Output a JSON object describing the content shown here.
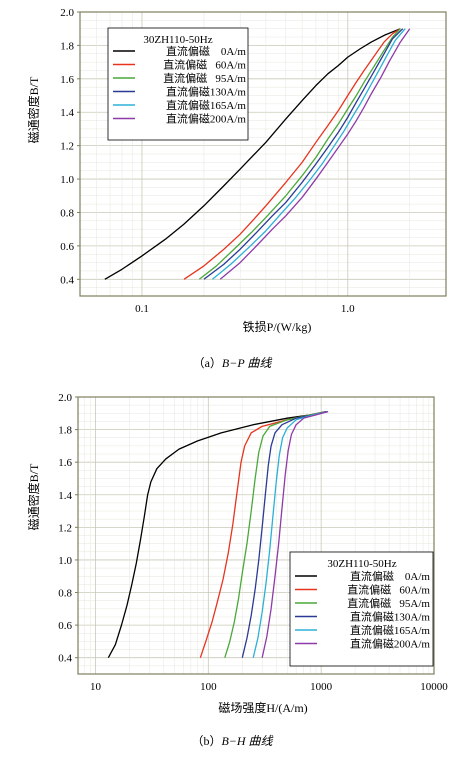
{
  "chart_data": [
    {
      "type": "line",
      "x_scale": "log",
      "xlim": [
        0.05,
        3.0
      ],
      "ylim": [
        0.3,
        2.0
      ],
      "x_ticks": [
        "0.1",
        "1.0"
      ],
      "y_ticks": [
        "0.4",
        "0.6",
        "0.8",
        "1.0",
        "1.2",
        "1.4",
        "1.6",
        "1.8",
        "2.0"
      ],
      "xlabel": "铁损P/(W/kg)",
      "ylabel": "磁通密度B/T",
      "caption_prefix": "（a）",
      "caption": "B−P 曲线",
      "legend_title": "30ZH110-50Hz",
      "legend_position": "top-left",
      "grid": true,
      "series": [
        {
          "name": "直流偏磁    0A/m",
          "color": "#000000",
          "points": [
            [
              0.066,
              0.4
            ],
            [
              0.08,
              0.46
            ],
            [
              0.1,
              0.54
            ],
            [
              0.13,
              0.64
            ],
            [
              0.16,
              0.73
            ],
            [
              0.2,
              0.84
            ],
            [
              0.25,
              0.96
            ],
            [
              0.3,
              1.06
            ],
            [
              0.4,
              1.22
            ],
            [
              0.5,
              1.36
            ],
            [
              0.6,
              1.47
            ],
            [
              0.7,
              1.56
            ],
            [
              0.8,
              1.63
            ],
            [
              0.9,
              1.68
            ],
            [
              1.0,
              1.73
            ],
            [
              1.15,
              1.78
            ],
            [
              1.3,
              1.82
            ],
            [
              1.5,
              1.86
            ],
            [
              1.8,
              1.9
            ]
          ]
        },
        {
          "name": "直流偏磁   60A/m",
          "color": "#e8341f",
          "points": [
            [
              0.16,
              0.4
            ],
            [
              0.2,
              0.48
            ],
            [
              0.25,
              0.58
            ],
            [
              0.3,
              0.67
            ],
            [
              0.35,
              0.76
            ],
            [
              0.4,
              0.84
            ],
            [
              0.5,
              0.98
            ],
            [
              0.6,
              1.1
            ],
            [
              0.7,
              1.22
            ],
            [
              0.8,
              1.32
            ],
            [
              0.9,
              1.41
            ],
            [
              1.0,
              1.5
            ],
            [
              1.1,
              1.58
            ],
            [
              1.2,
              1.65
            ],
            [
              1.35,
              1.74
            ],
            [
              1.5,
              1.82
            ],
            [
              1.65,
              1.87
            ],
            [
              1.8,
              1.9
            ]
          ]
        },
        {
          "name": "直流偏磁   95A/m",
          "color": "#4aa83a",
          "points": [
            [
              0.19,
              0.4
            ],
            [
              0.23,
              0.48
            ],
            [
              0.28,
              0.58
            ],
            [
              0.34,
              0.68
            ],
            [
              0.4,
              0.77
            ],
            [
              0.5,
              0.9
            ],
            [
              0.6,
              1.02
            ],
            [
              0.7,
              1.13
            ],
            [
              0.8,
              1.24
            ],
            [
              0.9,
              1.33
            ],
            [
              1.0,
              1.42
            ],
            [
              1.1,
              1.5
            ],
            [
              1.2,
              1.58
            ],
            [
              1.35,
              1.68
            ],
            [
              1.5,
              1.77
            ],
            [
              1.65,
              1.85
            ],
            [
              1.8,
              1.9
            ]
          ]
        },
        {
          "name": "直流偏磁130A/m",
          "color": "#2a3a96",
          "points": [
            [
              0.2,
              0.4
            ],
            [
              0.25,
              0.49
            ],
            [
              0.3,
              0.58
            ],
            [
              0.36,
              0.68
            ],
            [
              0.43,
              0.78
            ],
            [
              0.5,
              0.86
            ],
            [
              0.6,
              0.98
            ],
            [
              0.7,
              1.09
            ],
            [
              0.8,
              1.19
            ],
            [
              0.9,
              1.28
            ],
            [
              1.0,
              1.37
            ],
            [
              1.1,
              1.46
            ],
            [
              1.2,
              1.54
            ],
            [
              1.35,
              1.65
            ],
            [
              1.5,
              1.75
            ],
            [
              1.65,
              1.84
            ],
            [
              1.85,
              1.9
            ]
          ]
        },
        {
          "name": "直流偏磁165A/m",
          "color": "#2bb0d8",
          "points": [
            [
              0.22,
              0.4
            ],
            [
              0.27,
              0.49
            ],
            [
              0.33,
              0.59
            ],
            [
              0.4,
              0.69
            ],
            [
              0.48,
              0.8
            ],
            [
              0.55,
              0.88
            ],
            [
              0.65,
              0.99
            ],
            [
              0.75,
              1.09
            ],
            [
              0.85,
              1.19
            ],
            [
              0.95,
              1.28
            ],
            [
              1.05,
              1.37
            ],
            [
              1.15,
              1.45
            ],
            [
              1.25,
              1.53
            ],
            [
              1.4,
              1.64
            ],
            [
              1.55,
              1.74
            ],
            [
              1.7,
              1.83
            ],
            [
              1.9,
              1.9
            ]
          ]
        },
        {
          "name": "直流偏磁200A/m",
          "color": "#8e3aa8",
          "points": [
            [
              0.24,
              0.4
            ],
            [
              0.3,
              0.5
            ],
            [
              0.36,
              0.6
            ],
            [
              0.43,
              0.7
            ],
            [
              0.5,
              0.78
            ],
            [
              0.6,
              0.89
            ],
            [
              0.7,
              1.0
            ],
            [
              0.8,
              1.1
            ],
            [
              0.9,
              1.19
            ],
            [
              1.0,
              1.27
            ],
            [
              1.1,
              1.35
            ],
            [
              1.2,
              1.43
            ],
            [
              1.3,
              1.51
            ],
            [
              1.45,
              1.61
            ],
            [
              1.6,
              1.71
            ],
            [
              1.8,
              1.82
            ],
            [
              2.0,
              1.9
            ]
          ]
        }
      ]
    },
    {
      "type": "line",
      "x_scale": "log",
      "xlim": [
        7,
        10000
      ],
      "ylim": [
        0.3,
        2.0
      ],
      "x_ticks": [
        "10",
        "100",
        "1000",
        "10000"
      ],
      "y_ticks": [
        "0.4",
        "0.6",
        "0.8",
        "1.0",
        "1.2",
        "1.4",
        "1.6",
        "1.8",
        "2.0"
      ],
      "xlabel": "磁场强度H/(A/m)",
      "ylabel": "磁通密度B/T",
      "caption_prefix": "（b）",
      "caption": "B−H 曲线",
      "legend_title": "30ZH110-50Hz",
      "legend_position": "bottom-right",
      "grid": true,
      "series": [
        {
          "name": "直流偏磁    0A/m",
          "color": "#000000",
          "points": [
            [
              13,
              0.4
            ],
            [
              15,
              0.48
            ],
            [
              17,
              0.6
            ],
            [
              19,
              0.72
            ],
            [
              21,
              0.85
            ],
            [
              23,
              0.98
            ],
            [
              25,
              1.12
            ],
            [
              27,
              1.26
            ],
            [
              29,
              1.4
            ],
            [
              31,
              1.48
            ],
            [
              35,
              1.56
            ],
            [
              42,
              1.62
            ],
            [
              55,
              1.68
            ],
            [
              80,
              1.73
            ],
            [
              130,
              1.78
            ],
            [
              250,
              1.83
            ],
            [
              500,
              1.87
            ],
            [
              800,
              1.89
            ],
            [
              1100,
              1.91
            ]
          ]
        },
        {
          "name": "直流偏磁   60A/m",
          "color": "#e8341f",
          "points": [
            [
              85,
              0.4
            ],
            [
              95,
              0.5
            ],
            [
              108,
              0.62
            ],
            [
              120,
              0.74
            ],
            [
              135,
              0.88
            ],
            [
              150,
              1.04
            ],
            [
              165,
              1.22
            ],
            [
              180,
              1.42
            ],
            [
              195,
              1.6
            ],
            [
              210,
              1.7
            ],
            [
              240,
              1.78
            ],
            [
              300,
              1.82
            ],
            [
              500,
              1.86
            ],
            [
              800,
              1.89
            ],
            [
              1150,
              1.91
            ]
          ]
        },
        {
          "name": "直流偏磁   95A/m",
          "color": "#4aa83a",
          "points": [
            [
              140,
              0.4
            ],
            [
              155,
              0.5
            ],
            [
              170,
              0.62
            ],
            [
              185,
              0.76
            ],
            [
              200,
              0.92
            ],
            [
              220,
              1.1
            ],
            [
              240,
              1.3
            ],
            [
              260,
              1.5
            ],
            [
              280,
              1.66
            ],
            [
              305,
              1.76
            ],
            [
              350,
              1.82
            ],
            [
              500,
              1.86
            ],
            [
              800,
              1.89
            ],
            [
              1150,
              1.91
            ]
          ]
        },
        {
          "name": "直流偏磁130A/m",
          "color": "#2a3a96",
          "points": [
            [
              200,
              0.4
            ],
            [
              220,
              0.52
            ],
            [
              240,
              0.66
            ],
            [
              260,
              0.82
            ],
            [
              280,
              1.0
            ],
            [
              300,
              1.2
            ],
            [
              320,
              1.4
            ],
            [
              340,
              1.58
            ],
            [
              360,
              1.7
            ],
            [
              390,
              1.78
            ],
            [
              450,
              1.83
            ],
            [
              600,
              1.87
            ],
            [
              850,
              1.89
            ],
            [
              1150,
              1.91
            ]
          ]
        },
        {
          "name": "直流偏磁165A/m",
          "color": "#2bb0d8",
          "points": [
            [
              250,
              0.4
            ],
            [
              275,
              0.52
            ],
            [
              300,
              0.68
            ],
            [
              325,
              0.86
            ],
            [
              350,
              1.06
            ],
            [
              375,
              1.28
            ],
            [
              400,
              1.48
            ],
            [
              425,
              1.64
            ],
            [
              455,
              1.75
            ],
            [
              500,
              1.81
            ],
            [
              600,
              1.86
            ],
            [
              850,
              1.89
            ],
            [
              1150,
              1.91
            ]
          ]
        },
        {
          "name": "直流偏磁200A/m",
          "color": "#8e3aa8",
          "points": [
            [
              300,
              0.4
            ],
            [
              330,
              0.53
            ],
            [
              360,
              0.7
            ],
            [
              390,
              0.9
            ],
            [
              420,
              1.1
            ],
            [
              450,
              1.32
            ],
            [
              480,
              1.52
            ],
            [
              510,
              1.67
            ],
            [
              545,
              1.77
            ],
            [
              600,
              1.83
            ],
            [
              700,
              1.87
            ],
            [
              900,
              1.89
            ],
            [
              1150,
              1.91
            ]
          ]
        }
      ]
    }
  ]
}
